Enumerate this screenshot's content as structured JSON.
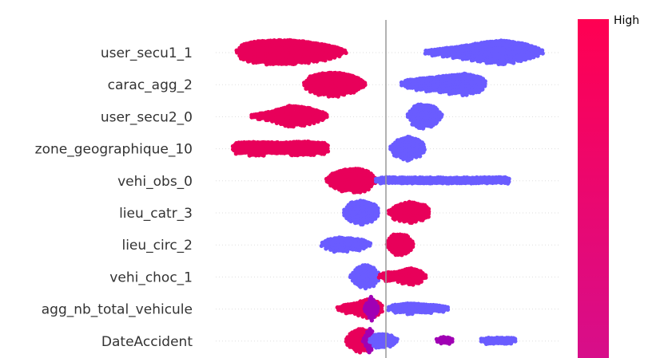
{
  "chart_data": {
    "type": "scatter",
    "subtype": "shap-beeswarm",
    "title": "",
    "xlabel": "",
    "ylabel": "",
    "xlim": [
      -1,
      1
    ],
    "zero_line": 0,
    "grid": false,
    "colorbar": {
      "label_high": "High",
      "color_high": "#ff0052",
      "color_low": "#008bfb",
      "placement": "right"
    },
    "dot_colors": {
      "high": "#e8005a",
      "low": "#6a5cff",
      "mid": "#a000b4"
    },
    "features": [
      {
        "name": "user_secu1_1",
        "clusters": [
          {
            "x0": -0.93,
            "x1": -0.25,
            "level": "high",
            "w": [
              0.6,
              0.9,
              1.0,
              1.0,
              0.85,
              0.6,
              0.2
            ]
          },
          {
            "x0": 0.25,
            "x1": 0.98,
            "level": "low",
            "w": [
              0.15,
              0.35,
              0.55,
              0.85,
              1.0,
              0.75,
              0.25
            ]
          }
        ]
      },
      {
        "name": "carac_agg_2",
        "clusters": [
          {
            "x0": -0.51,
            "x1": -0.13,
            "level": "high",
            "w": [
              0.5,
              0.9,
              1.0,
              0.8,
              0.3
            ]
          },
          {
            "x0": 0.1,
            "x1": 0.63,
            "level": "low",
            "w": [
              0.3,
              0.5,
              0.7,
              0.9,
              0.5
            ]
          }
        ]
      },
      {
        "name": "user_secu2_0",
        "clusters": [
          {
            "x0": -0.84,
            "x1": -0.36,
            "level": "high",
            "w": [
              0.15,
              0.4,
              0.9,
              0.7,
              0.2
            ]
          },
          {
            "x0": 0.14,
            "x1": 0.35,
            "level": "low",
            "w": [
              0.6,
              1.0,
              0.9,
              0.5
            ]
          }
        ]
      },
      {
        "name": "zone_geographique_10",
        "clusters": [
          {
            "x0": -0.96,
            "x1": -0.35,
            "level": "high",
            "w": [
              0.5,
              0.55,
              0.5,
              0.6,
              0.4
            ]
          },
          {
            "x0": 0.03,
            "x1": 0.25,
            "level": "low",
            "w": [
              0.5,
              1.0,
              0.5
            ]
          }
        ]
      },
      {
        "name": "vehi_obs_0",
        "clusters": [
          {
            "x0": -0.37,
            "x1": -0.07,
            "level": "high",
            "w": [
              0.4,
              0.9,
              1.0,
              0.6
            ]
          },
          {
            "x0": -0.06,
            "x1": 0.78,
            "level": "low",
            "w": [
              0.3,
              0.25,
              0.25,
              0.25,
              0.3
            ]
          }
        ]
      },
      {
        "name": "lieu_catr_3",
        "clusters": [
          {
            "x0": -0.26,
            "x1": -0.04,
            "level": "low",
            "w": [
              0.7,
              1.0,
              0.6
            ]
          },
          {
            "x0": 0.02,
            "x1": 0.28,
            "level": "high",
            "w": [
              0.4,
              0.9,
              0.5
            ]
          }
        ]
      },
      {
        "name": "lieu_circ_2",
        "clusters": [
          {
            "x0": -0.4,
            "x1": -0.1,
            "level": "low",
            "w": [
              0.3,
              0.6,
              0.5,
              0.3
            ]
          },
          {
            "x0": 0.01,
            "x1": 0.17,
            "level": "high",
            "w": [
              0.8,
              0.9,
              0.6
            ]
          }
        ]
      },
      {
        "name": "vehi_choc_1",
        "clusters": [
          {
            "x0": -0.22,
            "x1": -0.04,
            "level": "low",
            "w": [
              0.5,
              1.0,
              0.6
            ]
          },
          {
            "x0": -0.04,
            "x1": 0.25,
            "level": "high",
            "w": [
              0.3,
              0.4,
              0.7,
              0.4
            ]
          }
        ]
      },
      {
        "name": "agg_nb_total_vehicule",
        "clusters": [
          {
            "x0": -0.3,
            "x1": -0.02,
            "level": "high",
            "w": [
              0.25,
              0.4,
              0.8,
              0.5
            ]
          },
          {
            "x0": -0.13,
            "x1": -0.05,
            "level": "mid",
            "w": [
              0.7,
              1.0,
              0.6
            ]
          },
          {
            "x0": 0.02,
            "x1": 0.39,
            "level": "low",
            "w": [
              0.3,
              0.45,
              0.35,
              0.2
            ]
          }
        ]
      },
      {
        "name": "DateAccident",
        "clusters": [
          {
            "x0": -0.25,
            "x1": -0.08,
            "level": "high",
            "w": [
              0.5,
              1.0,
              0.8
            ]
          },
          {
            "x0": -0.14,
            "x1": -0.06,
            "level": "mid",
            "w": [
              0.6,
              1.0,
              0.6
            ]
          },
          {
            "x0": -0.1,
            "x1": 0.07,
            "level": "low",
            "w": [
              0.5,
              0.6,
              0.3
            ]
          },
          {
            "x0": 0.32,
            "x1": 0.42,
            "level": "mid",
            "w": [
              0.3,
              0.3
            ]
          },
          {
            "x0": 0.6,
            "x1": 0.82,
            "level": "low",
            "w": [
              0.25,
              0.25,
              0.25
            ]
          }
        ]
      }
    ]
  }
}
